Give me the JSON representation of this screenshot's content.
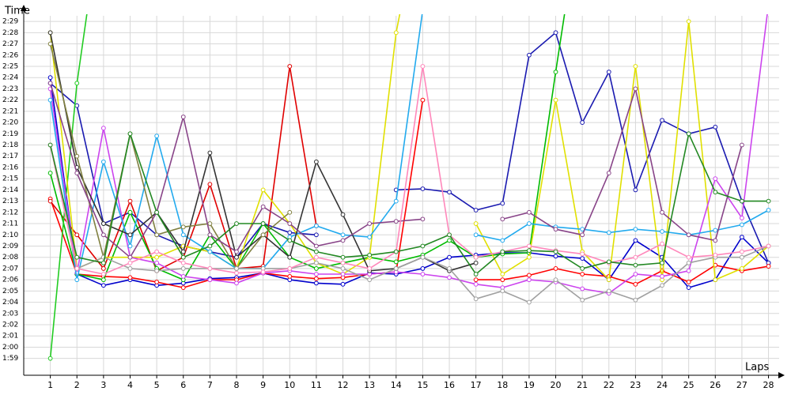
{
  "chart_data": {
    "type": "line",
    "y_label": "Time",
    "x_label": "Laps",
    "x": [
      1,
      2,
      3,
      4,
      5,
      6,
      7,
      8,
      9,
      10,
      11,
      12,
      13,
      14,
      15,
      16,
      17,
      18,
      19,
      20,
      21,
      22,
      23,
      24,
      25,
      26,
      27,
      28
    ],
    "xlim": [
      0,
      28.4
    ],
    "xticks": [
      1,
      2,
      3,
      4,
      5,
      6,
      7,
      8,
      9,
      10,
      11,
      12,
      13,
      14,
      15,
      16,
      17,
      18,
      19,
      20,
      21,
      22,
      23,
      24,
      25,
      26,
      27,
      28
    ],
    "ylim": [
      117.5,
      149.5
    ],
    "yticks": [
      {
        "value": 119,
        "label": "1:59"
      },
      {
        "value": 120,
        "label": "2:00"
      },
      {
        "value": 121,
        "label": "2:01"
      },
      {
        "value": 122,
        "label": "2:02"
      },
      {
        "value": 123,
        "label": "2:03"
      },
      {
        "value": 124,
        "label": "2:04"
      },
      {
        "value": 125,
        "label": "2:05"
      },
      {
        "value": 126,
        "label": "2:06"
      },
      {
        "value": 127,
        "label": "2:07"
      },
      {
        "value": 128,
        "label": "2:08"
      },
      {
        "value": 129,
        "label": "2:09"
      },
      {
        "value": 130,
        "label": "2:10"
      },
      {
        "value": 131,
        "label": "2:11"
      },
      {
        "value": 132,
        "label": "2:12"
      },
      {
        "value": 133,
        "label": "2:13"
      },
      {
        "value": 134,
        "label": "2:14"
      },
      {
        "value": 135,
        "label": "2:15"
      },
      {
        "value": 136,
        "label": "2:16"
      },
      {
        "value": 137,
        "label": "2:17"
      },
      {
        "value": 138,
        "label": "2:18"
      },
      {
        "value": 139,
        "label": "2:19"
      },
      {
        "value": 140,
        "label": "2:20"
      },
      {
        "value": 141,
        "label": "2:21"
      },
      {
        "value": 142,
        "label": "2:22"
      },
      {
        "value": 143,
        "label": "2:23"
      },
      {
        "value": 144,
        "label": "2:24"
      },
      {
        "value": 145,
        "label": "2:25"
      },
      {
        "value": 146,
        "label": "2:26"
      },
      {
        "value": 147,
        "label": "2:27"
      },
      {
        "value": 148,
        "label": "2:28"
      },
      {
        "value": 149,
        "label": "2:29"
      }
    ],
    "grid": true,
    "series": [
      {
        "color": "#0000cc",
        "values": [
          144,
          126.5,
          125.5,
          126,
          125.5,
          125.7,
          126.1,
          126.2,
          126.6,
          126,
          125.7,
          125.6,
          126.6,
          126.5,
          127,
          128,
          128.2,
          128.4,
          128.4,
          128.1,
          127.9,
          126,
          129.5,
          128,
          125.3,
          126,
          129.8,
          127.5
        ]
      },
      {
        "color": "#1a1ab0",
        "values": [
          143.5,
          141.5,
          131,
          132,
          130,
          129,
          128.5,
          128,
          131,
          130.2,
          130,
          null,
          null,
          134,
          134.1,
          133.8,
          132.2,
          132.8,
          146,
          148,
          140,
          144.5,
          134,
          140.2,
          139,
          139.6,
          133,
          127.5
        ]
      },
      {
        "color": "#ff0000",
        "values": [
          133.2,
          126.5,
          126.3,
          126.2,
          125.8,
          125.3,
          126,
          126,
          126.6,
          126.3,
          126.1,
          126.2,
          126.5,
          126.7,
          142,
          null,
          126,
          126,
          126.4,
          127,
          126.5,
          126.3,
          125.6,
          126.8,
          125.8,
          127.3,
          126.8,
          127.2
        ]
      },
      {
        "color": "#e00000",
        "values": [
          133,
          130,
          127,
          133,
          126.8,
          128,
          134.5,
          127,
          127.2,
          145,
          130.8,
          null,
          null,
          null,
          null,
          null,
          null,
          null,
          null,
          null,
          null,
          null,
          null,
          null,
          null,
          null,
          null,
          null
        ]
      },
      {
        "color": "#00bb00",
        "values": [
          135.5,
          126.5,
          126,
          132,
          127,
          126,
          130,
          127,
          131,
          128,
          127,
          127.5,
          128,
          127.6,
          128.2,
          129.5,
          128,
          128.3,
          128.4,
          144.5,
          160,
          null,
          null,
          null,
          null,
          null,
          null,
          null
        ]
      },
      {
        "color": "#22cc22",
        "values": [
          119,
          143.5,
          160,
          null,
          null,
          null,
          null,
          null,
          null,
          null,
          null,
          null,
          null,
          null,
          null,
          null,
          null,
          null,
          null,
          null,
          null,
          null,
          null,
          null,
          null,
          null,
          null,
          null
        ]
      },
      {
        "color": "#e0e000",
        "values": [
          148,
          127,
          128,
          128,
          128,
          129,
          128.5,
          127,
          134,
          131,
          127.5,
          126.5,
          128,
          148,
          160,
          null,
          131,
          126.5,
          128,
          142,
          128.5,
          126,
          145,
          126,
          149,
          126,
          127,
          129
        ]
      },
      {
        "color": "#cc44ee",
        "values": [
          143,
          126.6,
          139.5,
          128,
          127.5,
          126.3,
          126,
          125.7,
          126.6,
          126.8,
          126.5,
          126.5,
          126.5,
          126.7,
          126.5,
          126.2,
          125.6,
          125.3,
          126,
          125.8,
          125.2,
          124.8,
          126.5,
          126.3,
          126.8,
          135,
          131.5,
          150.5
        ]
      },
      {
        "color": "#22aaee",
        "values": [
          142,
          126,
          136.5,
          129,
          138.8,
          130,
          128.5,
          127,
          127,
          129.8,
          130.8,
          130,
          129.8,
          133,
          150,
          null,
          130,
          129.5,
          131,
          130.7,
          130.5,
          130.2,
          130.5,
          130.3,
          130,
          130.4,
          130.9,
          132.2
        ]
      },
      {
        "color": "#333333",
        "values": [
          148,
          136,
          131,
          130,
          132,
          128.5,
          137.3,
          128,
          130,
          128,
          136.5,
          131.8,
          126.8,
          127,
          128,
          126.8,
          127.5,
          null,
          null,
          null,
          null,
          null,
          null,
          null,
          null,
          null,
          null,
          null
        ]
      },
      {
        "color": "#808040",
        "values": [
          147,
          137,
          128,
          139,
          130,
          130.7,
          131,
          127,
          130,
          132,
          null,
          null,
          null,
          null,
          null,
          null,
          null,
          null,
          null,
          null,
          null,
          null,
          null,
          null,
          null,
          null,
          null,
          null
        ]
      },
      {
        "color": "#a0a0a0",
        "values": [
          138,
          127,
          128,
          127,
          126.8,
          127,
          127,
          127,
          127,
          127,
          127.5,
          127,
          126,
          127,
          128,
          127,
          124.3,
          125,
          124,
          126,
          124.2,
          125,
          124.2,
          125.5,
          127.5,
          128,
          128,
          129
        ]
      },
      {
        "color": "#884488",
        "values": [
          143.5,
          135.5,
          130,
          128,
          132,
          140.5,
          130,
          128.5,
          132.5,
          131,
          129,
          129.5,
          131,
          131.2,
          131.4,
          null,
          null,
          131.4,
          132,
          130.5,
          130,
          135.5,
          143,
          132,
          130,
          129.5,
          138,
          null
        ]
      },
      {
        "color": "#ff88bb",
        "values": [
          138,
          127,
          126.5,
          127.5,
          128.5,
          127.5,
          127,
          126.6,
          126.7,
          127,
          128,
          127.5,
          127,
          128.5,
          145,
          130,
          128,
          128.5,
          129,
          128.6,
          128.3,
          127.5,
          128,
          129.2,
          128,
          128.2,
          128.5,
          129
        ]
      },
      {
        "color": "#228822",
        "values": [
          138,
          128,
          127.5,
          139,
          132,
          128,
          129,
          131,
          131,
          129.5,
          128.5,
          128,
          128.2,
          128.5,
          129,
          130,
          126.5,
          128.5,
          128.6,
          128.5,
          127,
          127.6,
          127.3,
          127.5,
          139,
          133.8,
          133,
          133
        ]
      }
    ]
  }
}
